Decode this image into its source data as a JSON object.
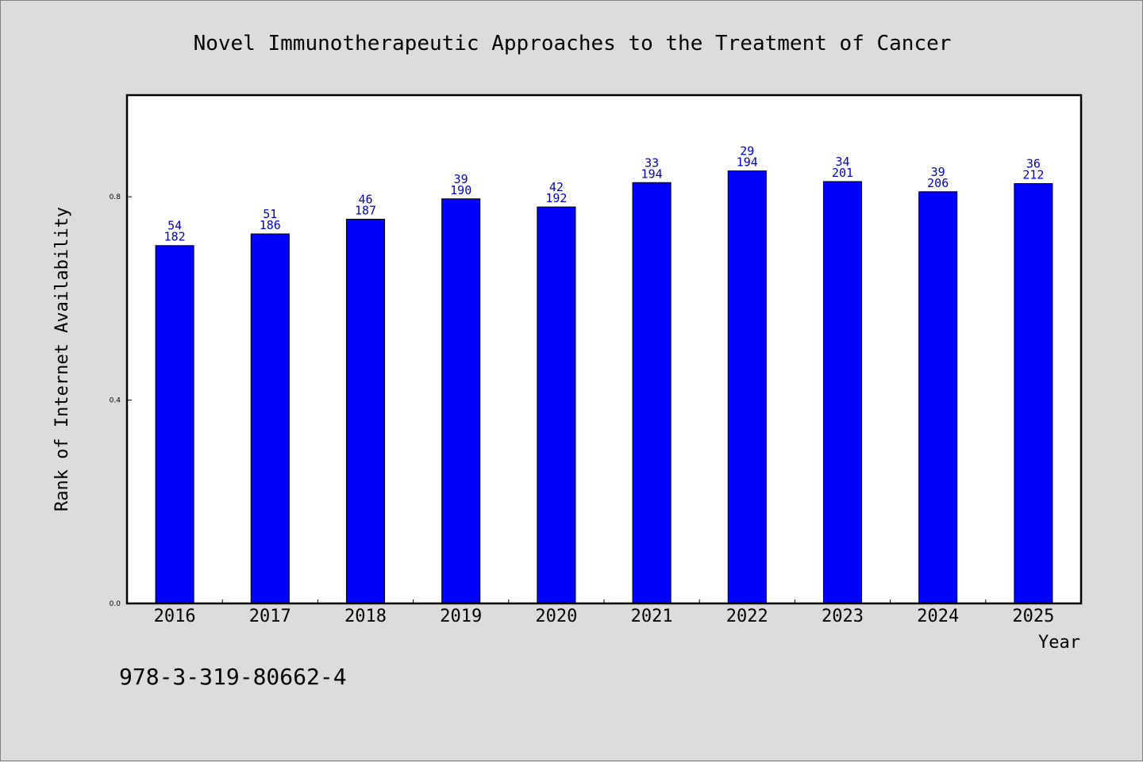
{
  "chart_data": {
    "type": "bar",
    "title": "Novel Immunotherapeutic Approaches to the Treatment of Cancer",
    "xlabel": "Year",
    "ylabel": "Rank of Internet Availability",
    "categories": [
      "2016",
      "2017",
      "2018",
      "2019",
      "2020",
      "2021",
      "2022",
      "2023",
      "2024",
      "2025"
    ],
    "values": [
      0.704,
      0.727,
      0.756,
      0.796,
      0.78,
      0.828,
      0.851,
      0.83,
      0.81,
      0.826
    ],
    "labels_top": [
      "54",
      "51",
      "46",
      "39",
      "42",
      "33",
      "29",
      "34",
      "39",
      "36"
    ],
    "labels_bottom": [
      "182",
      "186",
      "187",
      "190",
      "192",
      "194",
      "194",
      "201",
      "206",
      "212"
    ],
    "ylim": [
      0,
      1.0
    ],
    "yticks": [
      0.0,
      0.4,
      0.8
    ],
    "ytick_labels": [
      "0.0",
      "0.4",
      "0.8"
    ],
    "bar_color": "#0000ff",
    "label_color": "#0000c8",
    "grid": false,
    "legend": "none"
  },
  "footer": {
    "isbn": "978-3-319-80662-4"
  }
}
